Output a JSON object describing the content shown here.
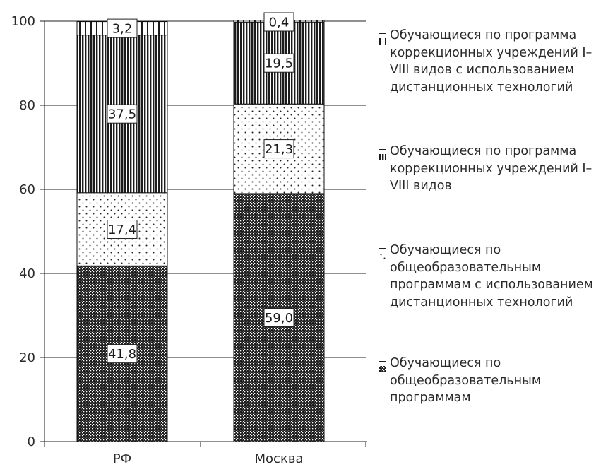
{
  "chart_data": {
    "type": "bar",
    "stacked": true,
    "categories": [
      "РФ",
      "Москва"
    ],
    "ylim": [
      0,
      100
    ],
    "yticks": [
      "0",
      "20",
      "40",
      "60",
      "80",
      "100"
    ],
    "grid": true,
    "legend_position": "right",
    "series": [
      {
        "name": "Обучающиеся по общеобразовательным программам",
        "values": [
          41.8,
          59.0
        ],
        "labels": [
          "41,8",
          "59,0"
        ],
        "pattern": "dense-dots"
      },
      {
        "name": "Обучающиеся по общеобразовательным программам с использованием дистанционных технологий",
        "values": [
          17.4,
          21.3
        ],
        "labels": [
          "17,4",
          "21,3"
        ],
        "pattern": "sparse-dots"
      },
      {
        "name": "Обучающиеся по программа коррекционных учреждений I–VIII видов",
        "values": [
          37.5,
          19.5
        ],
        "labels": [
          "37,5",
          "19,5"
        ],
        "pattern": "dense-vertical-stripes"
      },
      {
        "name": "Обучающиеся по программа коррекционных учреждений I–VIII видов с использованием дистанционных технологий",
        "values": [
          3.2,
          0.4
        ],
        "labels": [
          "3,2",
          "0,4"
        ],
        "pattern": "vertical-stripes"
      }
    ]
  },
  "legend": [
    {
      "label": "Обучающиеся по программа коррекционных учреждений I–VIII видов с использованием дистанционных технологий",
      "pattern": "vertical-stripes"
    },
    {
      "label": "Обучающиеся по программа коррекционных учреждений I–VIII видов",
      "pattern": "dense-vertical-stripes"
    },
    {
      "label": "Обучающиеся по общеобразовательным программам с использованием дистанционных технологий",
      "pattern": "sparse-dots"
    },
    {
      "label": "Обучающиеся по общеобразовательным программам",
      "pattern": "dense-dots"
    }
  ]
}
